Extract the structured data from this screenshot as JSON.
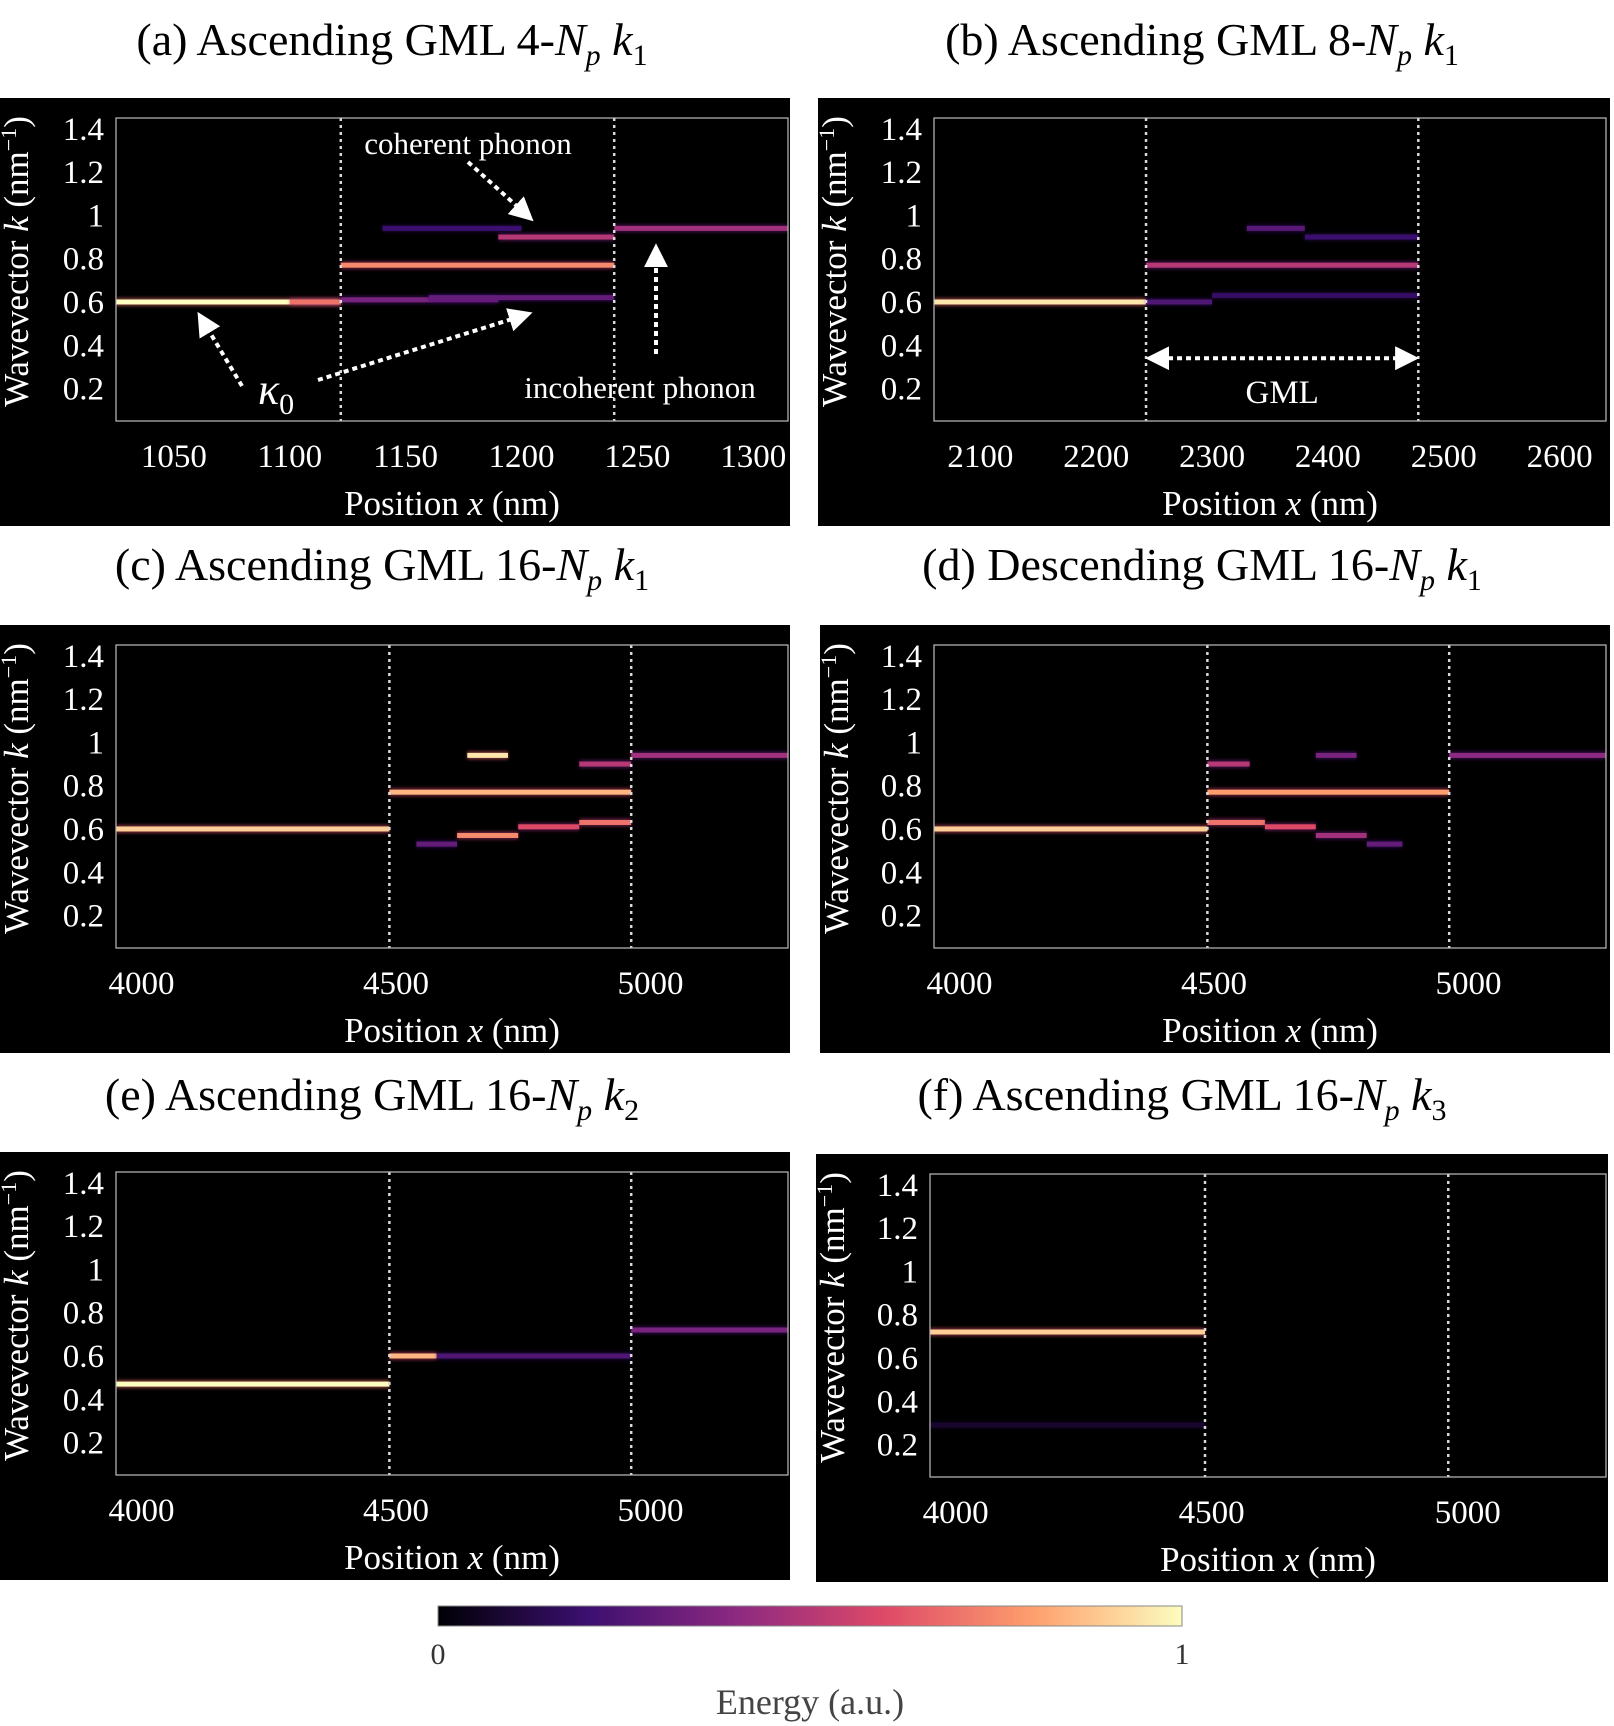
{
  "chart_data": [
    {
      "type": "heatmap",
      "panel": "(a)",
      "title": "(a) Ascending GML 4-Np k1",
      "title_parts": {
        "prefix": "(a) Ascending GML 4-",
        "sym": "N",
        "sym_sub": "p",
        "wave": "k",
        "wave_sub": "1"
      },
      "xlabel": "Position x (nm)",
      "ylabel": "Wavevector k (nm⁻¹)",
      "xlim": [
        1025,
        1315
      ],
      "ylim": [
        0.05,
        1.45
      ],
      "xticks": [
        1050,
        1100,
        1150,
        1200,
        1250,
        1300
      ],
      "yticks": [
        0.2,
        0.4,
        0.6,
        0.8,
        1,
        1.2,
        1.4
      ],
      "interfaces": [
        1122,
        1240
      ],
      "bands": [
        {
          "x0": 1025,
          "x1": 1122,
          "k": 0.6,
          "energy": 1.0
        },
        {
          "x0": 1100,
          "x1": 1122,
          "k": 0.6,
          "energy": 0.7
        },
        {
          "x0": 1122,
          "x1": 1190,
          "k": 0.61,
          "energy": 0.35
        },
        {
          "x0": 1122,
          "x1": 1240,
          "k": 0.77,
          "energy": 0.75
        },
        {
          "x0": 1160,
          "x1": 1240,
          "k": 0.62,
          "energy": 0.3
        },
        {
          "x0": 1190,
          "x1": 1240,
          "k": 0.9,
          "energy": 0.5
        },
        {
          "x0": 1140,
          "x1": 1200,
          "k": 0.94,
          "energy": 0.2
        },
        {
          "x0": 1240,
          "x1": 1315,
          "k": 0.94,
          "energy": 0.45
        }
      ],
      "annotations": {
        "coherent": "coherent phonon",
        "incoherent": "incoherent phonon",
        "kappa": "κ",
        "kappa_sub": "0"
      }
    },
    {
      "type": "heatmap",
      "panel": "(b)",
      "title": "(b) Ascending GML 8-Np k1",
      "title_parts": {
        "prefix": "(b) Ascending GML 8-",
        "sym": "N",
        "sym_sub": "p",
        "wave": "k",
        "wave_sub": "1"
      },
      "xlabel": "Position x (nm)",
      "ylabel": "Wavevector k (nm⁻¹)",
      "xlim": [
        2060,
        2640
      ],
      "ylim": [
        0.05,
        1.45
      ],
      "xticks": [
        2100,
        2200,
        2300,
        2400,
        2500,
        2600
      ],
      "yticks": [
        0.2,
        0.4,
        0.6,
        0.8,
        1,
        1.2,
        1.4
      ],
      "interfaces": [
        2243,
        2478
      ],
      "bands": [
        {
          "x0": 2060,
          "x1": 2243,
          "k": 0.6,
          "energy": 0.95
        },
        {
          "x0": 2243,
          "x1": 2478,
          "k": 0.77,
          "energy": 0.5
        },
        {
          "x0": 2243,
          "x1": 2300,
          "k": 0.6,
          "energy": 0.25
        },
        {
          "x0": 2300,
          "x1": 2478,
          "k": 0.63,
          "energy": 0.18
        },
        {
          "x0": 2330,
          "x1": 2380,
          "k": 0.94,
          "energy": 0.28
        },
        {
          "x0": 2380,
          "x1": 2478,
          "k": 0.9,
          "energy": 0.2
        }
      ],
      "annotations": {
        "gml": "GML"
      }
    },
    {
      "type": "heatmap",
      "panel": "(c)",
      "title": "(c) Ascending GML 16-Np k1",
      "title_parts": {
        "prefix": "(c) Ascending GML 16-",
        "sym": "N",
        "sym_sub": "p",
        "wave": "k",
        "wave_sub": "1"
      },
      "xlabel": "Position x (nm)",
      "ylabel": "Wavevector k (nm⁻¹)",
      "xlim": [
        3950,
        5270
      ],
      "ylim": [
        0.05,
        1.45
      ],
      "xticks": [
        4000,
        4500,
        5000
      ],
      "yticks": [
        0.2,
        0.4,
        0.6,
        0.8,
        1,
        1.2,
        1.4
      ],
      "interfaces": [
        4487,
        4962
      ],
      "bands": [
        {
          "x0": 3950,
          "x1": 4487,
          "k": 0.6,
          "energy": 0.9
        },
        {
          "x0": 4487,
          "x1": 4962,
          "k": 0.77,
          "energy": 0.85
        },
        {
          "x0": 4640,
          "x1": 4720,
          "k": 0.94,
          "energy": 0.95
        },
        {
          "x0": 4860,
          "x1": 4962,
          "k": 0.9,
          "energy": 0.5
        },
        {
          "x0": 4620,
          "x1": 4740,
          "k": 0.57,
          "energy": 0.75
        },
        {
          "x0": 4740,
          "x1": 4860,
          "k": 0.61,
          "energy": 0.6
        },
        {
          "x0": 4860,
          "x1": 4962,
          "k": 0.63,
          "energy": 0.7
        },
        {
          "x0": 4540,
          "x1": 4620,
          "k": 0.53,
          "energy": 0.3
        },
        {
          "x0": 4962,
          "x1": 5270,
          "k": 0.94,
          "energy": 0.45
        }
      ]
    },
    {
      "type": "heatmap",
      "panel": "(d)",
      "title": "(d) Descending GML 16-Np k1",
      "title_parts": {
        "prefix": "(d) Descending GML 16-",
        "sym": "N",
        "sym_sub": "p",
        "wave": "k",
        "wave_sub": "1"
      },
      "xlabel": "Position x (nm)",
      "ylabel": "Wavevector k (nm⁻¹)",
      "xlim": [
        3950,
        5270
      ],
      "ylim": [
        0.05,
        1.45
      ],
      "xticks": [
        4000,
        4500,
        5000
      ],
      "yticks": [
        0.2,
        0.4,
        0.6,
        0.8,
        1,
        1.2,
        1.4
      ],
      "interfaces": [
        4487,
        4962
      ],
      "bands": [
        {
          "x0": 3950,
          "x1": 4487,
          "k": 0.6,
          "energy": 0.9
        },
        {
          "x0": 4487,
          "x1": 4962,
          "k": 0.77,
          "energy": 0.8
        },
        {
          "x0": 4487,
          "x1": 4570,
          "k": 0.9,
          "energy": 0.5
        },
        {
          "x0": 4487,
          "x1": 4600,
          "k": 0.63,
          "energy": 0.7
        },
        {
          "x0": 4600,
          "x1": 4700,
          "k": 0.61,
          "energy": 0.6
        },
        {
          "x0": 4700,
          "x1": 4800,
          "k": 0.57,
          "energy": 0.45
        },
        {
          "x0": 4800,
          "x1": 4870,
          "k": 0.53,
          "energy": 0.3
        },
        {
          "x0": 4700,
          "x1": 4780,
          "k": 0.94,
          "energy": 0.35
        },
        {
          "x0": 4962,
          "x1": 5270,
          "k": 0.94,
          "energy": 0.4
        }
      ]
    },
    {
      "type": "heatmap",
      "panel": "(e)",
      "title": "(e) Ascending GML 16-Np k2",
      "title_parts": {
        "prefix": "(e) Ascending GML 16-",
        "sym": "N",
        "sym_sub": "p",
        "wave": "k",
        "wave_sub": "2"
      },
      "xlabel": "Position x (nm)",
      "ylabel": "Wavevector k (nm⁻¹)",
      "xlim": [
        3950,
        5270
      ],
      "ylim": [
        0.05,
        1.45
      ],
      "xticks": [
        4000,
        4500,
        5000
      ],
      "yticks": [
        0.2,
        0.4,
        0.6,
        0.8,
        1,
        1.2,
        1.4
      ],
      "interfaces": [
        4487,
        4962
      ],
      "bands": [
        {
          "x0": 3950,
          "x1": 4487,
          "k": 0.47,
          "energy": 1.0
        },
        {
          "x0": 4487,
          "x1": 4580,
          "k": 0.6,
          "energy": 0.85
        },
        {
          "x0": 4580,
          "x1": 4962,
          "k": 0.6,
          "energy": 0.25
        },
        {
          "x0": 4962,
          "x1": 5270,
          "k": 0.72,
          "energy": 0.35
        }
      ]
    },
    {
      "type": "heatmap",
      "panel": "(f)",
      "title": "(f) Ascending GML 16-Np k3",
      "title_parts": {
        "prefix": "(f) Ascending GML 16-",
        "sym": "N",
        "sym_sub": "p",
        "wave": "k",
        "wave_sub": "3"
      },
      "xlabel": "Position x (nm)",
      "ylabel": "Wavevector k (nm⁻¹)",
      "xlim": [
        3950,
        5270
      ],
      "ylim": [
        0.05,
        1.45
      ],
      "xticks": [
        4000,
        4500,
        5000
      ],
      "yticks": [
        0.2,
        0.4,
        0.6,
        0.8,
        1,
        1.2,
        1.4
      ],
      "interfaces": [
        4487,
        4962
      ],
      "bands": [
        {
          "x0": 3950,
          "x1": 4487,
          "k": 0.72,
          "energy": 0.9
        },
        {
          "x0": 3950,
          "x1": 4487,
          "k": 0.29,
          "energy": 0.08
        }
      ]
    }
  ],
  "colorbar": {
    "label": "Energy (a.u.)",
    "min_label": "0",
    "max_label": "1",
    "colormap": [
      "#000004",
      "#3b0f70",
      "#8c2981",
      "#de4968",
      "#fe9f6d",
      "#fcfdbf"
    ]
  },
  "axis_text": {
    "xlabel_prefix": "Position ",
    "xlabel_var": "x",
    "xlabel_suffix": " (nm)",
    "ylabel_prefix": "Wavevector ",
    "ylabel_var": "k",
    "ylabel_suffix": " (nm",
    "ylabel_exp": "−1",
    "ylabel_close": ")"
  }
}
